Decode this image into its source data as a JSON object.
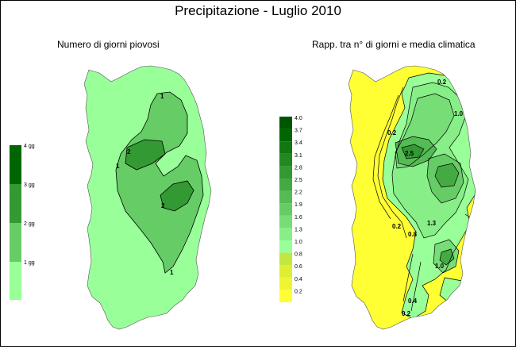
{
  "title": "Precipitazione - Luglio 2010",
  "left_map": {
    "subtitle": "Numero di giorni piovosi",
    "legend": [
      {
        "label": "",
        "color": "#99ff99"
      },
      {
        "label": "1 gg",
        "color": "#66cc66"
      },
      {
        "label": "2 gg",
        "color": "#339933"
      },
      {
        "label": "3 gg",
        "color": "#006600"
      },
      {
        "label": "4 gg",
        "color": "#006600"
      }
    ],
    "contour_labels": [
      "1",
      "1",
      "1",
      "2",
      "2"
    ]
  },
  "right_map": {
    "subtitle": "Rapp. tra n° di giorni e media climatica",
    "legend": [
      {
        "label": "0.2",
        "color": "#ffff33"
      },
      {
        "label": "0.4",
        "color": "#f0f533"
      },
      {
        "label": "0.6",
        "color": "#ddee33"
      },
      {
        "label": "0.8",
        "color": "#c4e640"
      },
      {
        "label": "1.0",
        "color": "#99ff99"
      },
      {
        "label": "1.3",
        "color": "#88ee88"
      },
      {
        "label": "1.6",
        "color": "#77dd77"
      },
      {
        "label": "1.9",
        "color": "#66cc66"
      },
      {
        "label": "2.2",
        "color": "#55bb55"
      },
      {
        "label": "2.5",
        "color": "#44aa44"
      },
      {
        "label": "2.8",
        "color": "#339933"
      },
      {
        "label": "3.1",
        "color": "#228822"
      },
      {
        "label": "3.4",
        "color": "#117711"
      },
      {
        "label": "3.7",
        "color": "#006600"
      },
      {
        "label": "4.0",
        "color": "#005500"
      }
    ],
    "contour_labels": [
      "0.2",
      "0.2",
      "0.2",
      "1.0",
      "2.5",
      "1.3",
      "0.8",
      "1.0",
      "0.4",
      "0.2"
    ]
  }
}
